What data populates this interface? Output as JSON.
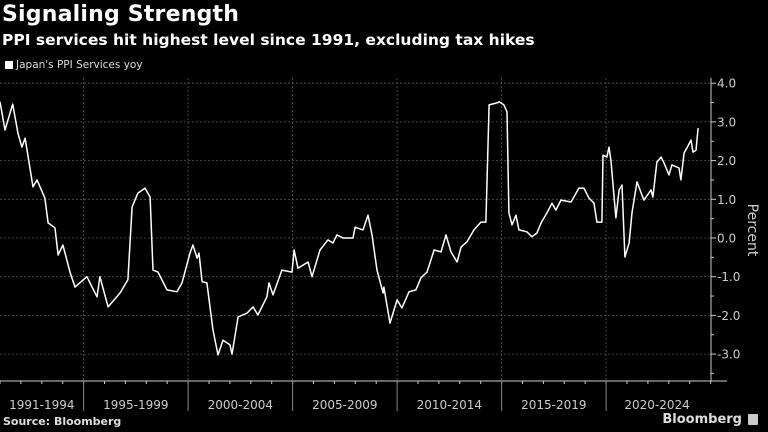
{
  "chart_data": {
    "type": "line",
    "title": "Signaling Strength",
    "subtitle": "PPI services hit highest level since 1991, excluding tax hikes",
    "ylabel": "Percent",
    "xlabel": "",
    "ylim": [
      -3.8,
      4.1
    ],
    "xlim": [
      1991.05,
      2025.1
    ],
    "y_axis_position": "right",
    "grid": true,
    "legend_placement": "top-left",
    "yticks": [
      "4.0",
      "3.0",
      "2.0",
      "1.0",
      "0.0",
      "-1.0",
      "-2.0",
      "-3.0"
    ],
    "ytick_values": [
      4,
      3,
      2,
      1,
      0,
      -1,
      -2,
      -3
    ],
    "x_periods": [
      {
        "label": "1991-1994",
        "start": 1991,
        "end": 1995
      },
      {
        "label": "1995-1999",
        "start": 1995,
        "end": 2000
      },
      {
        "label": "2000-2004",
        "start": 2000,
        "end": 2005
      },
      {
        "label": "2005-2009",
        "start": 2005,
        "end": 2010
      },
      {
        "label": "2010-2014",
        "start": 2010,
        "end": 2015
      },
      {
        "label": "2015-2019",
        "start": 2015,
        "end": 2020
      },
      {
        "label": "2020-2024",
        "start": 2020,
        "end": 2025
      }
    ],
    "series": [
      {
        "name": "Japan's PPI Services yoy",
        "color": "#ffffff",
        "x": [
          1991.05,
          1991.29,
          1991.66,
          1991.91,
          1992.1,
          1992.25,
          1992.63,
          1992.82,
          1993.2,
          1993.35,
          1993.68,
          1993.83,
          1994.06,
          1994.4,
          1994.64,
          1995.21,
          1995.69,
          1995.83,
          1996.22,
          1996.79,
          1997.17,
          1997.37,
          1997.65,
          1997.99,
          1998.23,
          1998.37,
          1998.61,
          1999.04,
          1999.52,
          1999.76,
          2000.14,
          2000.28,
          2000.48,
          2000.57,
          2000.72,
          2000.95,
          2001.24,
          2001.48,
          2001.72,
          2002.05,
          2002.15,
          2002.44,
          2002.87,
          2003.16,
          2003.39,
          2003.82,
          2003.92,
          2004.11,
          2004.54,
          2005.02,
          2005.12,
          2005.31,
          2005.79,
          2005.98,
          2006.36,
          2006.74,
          2006.98,
          2007.17,
          2007.46,
          2007.94,
          2008.04,
          2008.42,
          2008.66,
          2008.85,
          2009.09,
          2009.38,
          2009.42,
          2009.71,
          2009.9,
          2010.05,
          2010.28,
          2010.62,
          2010.95,
          2011.19,
          2011.48,
          2011.82,
          2012.15,
          2012.39,
          2012.63,
          2012.92,
          2013.11,
          2013.39,
          2013.73,
          2014.06,
          2014.3,
          2014.45,
          2014.83,
          2014.93,
          2015.16,
          2015.31,
          2015.4,
          2015.55,
          2015.74,
          2015.88,
          2016.26,
          2016.5,
          2016.74,
          2016.94,
          2017.22,
          2017.46,
          2017.65,
          2017.89,
          2018.37,
          2018.51,
          2018.75,
          2018.99,
          2019.23,
          2019.47,
          2019.61,
          2019.85,
          2019.9,
          2020.09,
          2020.19,
          2020.28,
          2020.52,
          2020.67,
          2020.81,
          2020.95,
          2021.15,
          2021.29,
          2021.53,
          2021.86,
          2022.2,
          2022.29,
          2022.48,
          2022.68,
          2022.82,
          2023.06,
          2023.2,
          2023.54,
          2023.63,
          2023.78,
          2023.92,
          2024.11,
          2024.21,
          2024.35,
          2024.45
        ],
        "values": [
          3.52,
          2.79,
          3.46,
          2.7,
          2.35,
          2.58,
          1.32,
          1.5,
          1.03,
          0.39,
          0.26,
          -0.44,
          -0.18,
          -0.88,
          -1.27,
          -1.0,
          -1.52,
          -1.0,
          -1.78,
          -1.42,
          -1.08,
          0.8,
          1.16,
          1.29,
          1.06,
          -0.83,
          -0.88,
          -1.34,
          -1.39,
          -1.16,
          -0.39,
          -0.18,
          -0.52,
          -0.39,
          -1.13,
          -1.16,
          -2.38,
          -3.02,
          -2.64,
          -2.76,
          -3.0,
          -2.04,
          -1.94,
          -1.78,
          -1.99,
          -1.52,
          -1.16,
          -1.47,
          -0.83,
          -0.88,
          -0.31,
          -0.78,
          -0.62,
          -1.0,
          -0.31,
          -0.05,
          -0.13,
          0.08,
          0.0,
          0.0,
          0.28,
          0.21,
          0.59,
          0.08,
          -0.83,
          -1.42,
          -1.27,
          -2.2,
          -1.86,
          -1.6,
          -1.81,
          -1.39,
          -1.34,
          -1.03,
          -0.88,
          -0.31,
          -0.36,
          0.08,
          -0.36,
          -0.62,
          -0.23,
          -0.1,
          0.21,
          0.41,
          0.41,
          3.44,
          3.49,
          3.52,
          3.44,
          3.26,
          0.65,
          0.34,
          0.59,
          0.21,
          0.16,
          0.03,
          0.13,
          0.39,
          0.65,
          0.9,
          0.72,
          0.98,
          0.93,
          1.06,
          1.29,
          1.29,
          1.03,
          0.9,
          0.41,
          0.41,
          2.14,
          2.09,
          2.35,
          2.01,
          0.52,
          1.24,
          1.37,
          -0.49,
          -0.13,
          0.65,
          1.45,
          0.98,
          1.24,
          1.06,
          1.96,
          2.09,
          1.94,
          1.63,
          1.89,
          1.81,
          1.5,
          2.2,
          2.33,
          2.53,
          2.22,
          2.27,
          2.84
        ]
      }
    ],
    "source": "Source: Bloomberg",
    "brand": "Bloomberg",
    "brand_icon": "bloomberg-terminal-icon"
  }
}
